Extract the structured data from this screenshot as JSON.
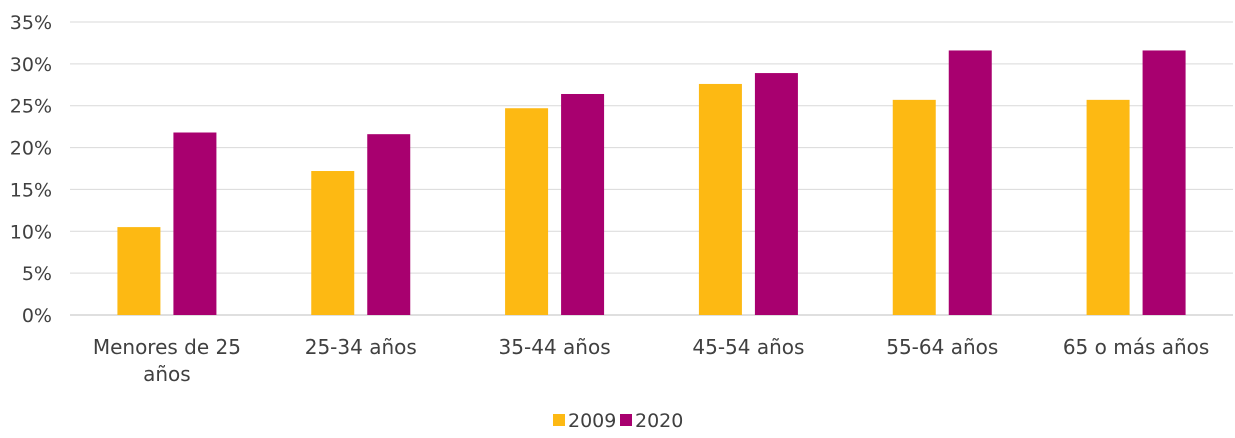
{
  "chart_data": {
    "type": "bar",
    "categories": [
      "Menores de 25 años",
      "25-34 años",
      "35-44 años",
      "45-54 años",
      "55-64 años",
      "65 o más años"
    ],
    "category_lines": [
      [
        "Menores de 25",
        "años"
      ],
      [
        "25-34 años"
      ],
      [
        "35-44 años"
      ],
      [
        "45-54 años"
      ],
      [
        "55-64 años"
      ],
      [
        "65 o más años"
      ]
    ],
    "series": [
      {
        "name": "2009",
        "color": "#FDB913",
        "values": [
          10.5,
          17.2,
          24.7,
          27.6,
          25.7,
          25.7
        ]
      },
      {
        "name": "2020",
        "color": "#A8006F",
        "values": [
          21.8,
          21.6,
          26.4,
          28.9,
          31.6,
          31.6
        ]
      }
    ],
    "ylim": [
      0,
      35
    ],
    "yticks": [
      0,
      5,
      10,
      15,
      20,
      25,
      30,
      35
    ],
    "ytick_labels": [
      "0%",
      "5%",
      "10%",
      "15%",
      "20%",
      "25%",
      "30%",
      "35%"
    ],
    "grid": true,
    "legend_position": "bottom",
    "title": "",
    "xlabel": "",
    "ylabel": ""
  }
}
